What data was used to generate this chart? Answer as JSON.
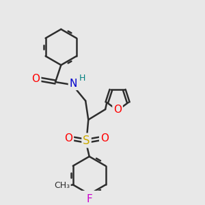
{
  "bg_color": "#e8e8e8",
  "bond_color": "#2d2d2d",
  "bond_width": 1.8,
  "atom_colors": {
    "O": "#ff0000",
    "N": "#0000cd",
    "S": "#ccaa00",
    "F": "#cc00cc",
    "H": "#008080",
    "C": "#2d2d2d"
  },
  "font_size": 10
}
